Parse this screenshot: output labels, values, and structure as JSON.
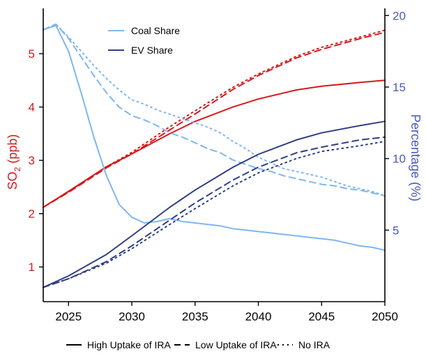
{
  "chart_data": {
    "type": "line",
    "xlim": [
      2023,
      2050
    ],
    "x_ticks": [
      2025,
      2030,
      2035,
      2040,
      2045,
      2050
    ],
    "y_left": {
      "label_main": "SO",
      "label_sub": "2",
      "label_tail": " (ppb)",
      "lim": [
        0.35,
        5.85
      ],
      "ticks": [
        1,
        2,
        3,
        4,
        5
      ],
      "color": "#d7191c"
    },
    "y_right": {
      "label": "Percentage (%)",
      "lim": [
        0.0,
        20.5
      ],
      "ticks": [
        5,
        10,
        15,
        20
      ],
      "color": "#4a5ab8"
    },
    "series": [
      {
        "name": "SO2",
        "scenario": "High Uptake of IRA",
        "axis": "left",
        "color": "#d7191c",
        "dash": "solid",
        "x": [
          2023,
          2025,
          2028,
          2030,
          2033,
          2035,
          2038,
          2040,
          2043,
          2045,
          2048,
          2050
        ],
        "y": [
          2.12,
          2.42,
          2.88,
          3.12,
          3.5,
          3.73,
          4.0,
          4.15,
          4.32,
          4.39,
          4.46,
          4.5
        ]
      },
      {
        "name": "SO2",
        "scenario": "Low Uptake of IRA",
        "axis": "left",
        "color": "#d7191c",
        "dash": "dashed",
        "x": [
          2023,
          2025,
          2028,
          2030,
          2033,
          2035,
          2038,
          2040,
          2043,
          2045,
          2048,
          2050
        ],
        "y": [
          2.12,
          2.4,
          2.86,
          3.12,
          3.57,
          3.87,
          4.33,
          4.59,
          4.92,
          5.08,
          5.28,
          5.4
        ]
      },
      {
        "name": "SO2",
        "scenario": "No IRA",
        "axis": "left",
        "color": "#d7191c",
        "dash": "dotted",
        "x": [
          2023,
          2025,
          2028,
          2030,
          2033,
          2035,
          2038,
          2040,
          2043,
          2045,
          2048,
          2050
        ],
        "y": [
          2.12,
          2.41,
          2.88,
          3.15,
          3.63,
          3.93,
          4.37,
          4.62,
          4.95,
          5.12,
          5.31,
          5.44
        ]
      },
      {
        "name": "Coal Share",
        "scenario": "High Uptake of IRA",
        "axis": "right",
        "color": "#7eb6f0",
        "dash": "solid",
        "x": [
          2023,
          2024,
          2025,
          2026,
          2027,
          2028,
          2029,
          2030,
          2031,
          2032,
          2033,
          2034,
          2035,
          2036,
          2037,
          2038,
          2039,
          2040,
          2041,
          2042,
          2043,
          2044,
          2045,
          2046,
          2047,
          2048,
          2049,
          2050
        ],
        "y": [
          19.0,
          19.3,
          17.5,
          14.6,
          11.5,
          8.8,
          6.8,
          5.9,
          5.5,
          5.6,
          5.8,
          5.6,
          5.5,
          5.4,
          5.3,
          5.1,
          5.0,
          4.9,
          4.8,
          4.7,
          4.6,
          4.5,
          4.4,
          4.3,
          4.1,
          3.9,
          3.8,
          3.6
        ]
      },
      {
        "name": "Coal Share",
        "scenario": "Low Uptake of IRA",
        "axis": "right",
        "color": "#7eb6f0",
        "dash": "dashed",
        "x": [
          2023,
          2024,
          2025,
          2026,
          2027,
          2028,
          2029,
          2030,
          2031,
          2032,
          2033,
          2034,
          2035,
          2036,
          2037,
          2038,
          2039,
          2040,
          2041,
          2042,
          2043,
          2044,
          2045,
          2046,
          2047,
          2048,
          2049,
          2050
        ],
        "y": [
          19.0,
          19.4,
          18.4,
          17.1,
          15.8,
          14.6,
          13.6,
          13.0,
          12.7,
          12.3,
          11.8,
          11.5,
          11.1,
          10.7,
          10.4,
          9.9,
          9.6,
          9.3,
          9.1,
          8.8,
          8.6,
          8.4,
          8.2,
          8.1,
          7.9,
          7.8,
          7.6,
          7.4
        ]
      },
      {
        "name": "Coal Share",
        "scenario": "No IRA",
        "axis": "right",
        "color": "#7eb6f0",
        "dash": "dotted",
        "x": [
          2023,
          2024,
          2025,
          2026,
          2027,
          2028,
          2029,
          2030,
          2031,
          2032,
          2033,
          2034,
          2035,
          2036,
          2037,
          2038,
          2039,
          2040,
          2041,
          2042,
          2043,
          2044,
          2045,
          2046,
          2047,
          2048,
          2049,
          2050
        ],
        "y": [
          19.0,
          19.4,
          18.5,
          17.5,
          16.5,
          15.6,
          14.8,
          14.1,
          13.8,
          13.4,
          13.1,
          12.8,
          12.5,
          12.2,
          11.8,
          11.2,
          10.7,
          10.1,
          9.7,
          9.3,
          9.1,
          8.9,
          8.7,
          8.4,
          8.1,
          7.9,
          7.7,
          7.4
        ]
      },
      {
        "name": "EV Share",
        "scenario": "High Uptake of IRA",
        "axis": "right",
        "color": "#2e3f82",
        "dash": "solid",
        "x": [
          2023,
          2025,
          2028,
          2030,
          2033,
          2035,
          2038,
          2040,
          2043,
          2045,
          2048,
          2050
        ],
        "y": [
          1.0,
          1.8,
          3.3,
          4.6,
          6.6,
          7.8,
          9.4,
          10.3,
          11.3,
          11.8,
          12.3,
          12.6
        ]
      },
      {
        "name": "EV Share",
        "scenario": "Low Uptake of IRA",
        "axis": "right",
        "color": "#2e3f82",
        "dash": "dashed",
        "x": [
          2023,
          2025,
          2028,
          2030,
          2033,
          2035,
          2038,
          2040,
          2043,
          2045,
          2048,
          2050
        ],
        "y": [
          1.0,
          1.6,
          2.8,
          3.9,
          5.7,
          6.9,
          8.5,
          9.4,
          10.4,
          10.8,
          11.3,
          11.5
        ]
      },
      {
        "name": "EV Share",
        "scenario": "No IRA",
        "axis": "right",
        "color": "#2e3f82",
        "dash": "dotted",
        "x": [
          2023,
          2025,
          2028,
          2030,
          2033,
          2035,
          2038,
          2040,
          2043,
          2045,
          2048,
          2050
        ],
        "y": [
          1.0,
          1.6,
          2.7,
          3.7,
          5.4,
          6.5,
          8.1,
          9.0,
          10.0,
          10.5,
          10.9,
          11.2
        ]
      }
    ],
    "legend_top": {
      "placement": "top-left inside",
      "entries": [
        {
          "label": "Coal Share",
          "color": "#7eb6f0"
        },
        {
          "label": "EV Share",
          "color": "#2e3f82"
        }
      ]
    },
    "legend_bottom": {
      "placement": "bottom",
      "entries": [
        {
          "label": "High Uptake of IRA",
          "dash": "solid"
        },
        {
          "label": "Low Uptake of IRA",
          "dash": "dashed"
        },
        {
          "label": "No IRA",
          "dash": "dotted"
        }
      ]
    },
    "grid": false
  }
}
